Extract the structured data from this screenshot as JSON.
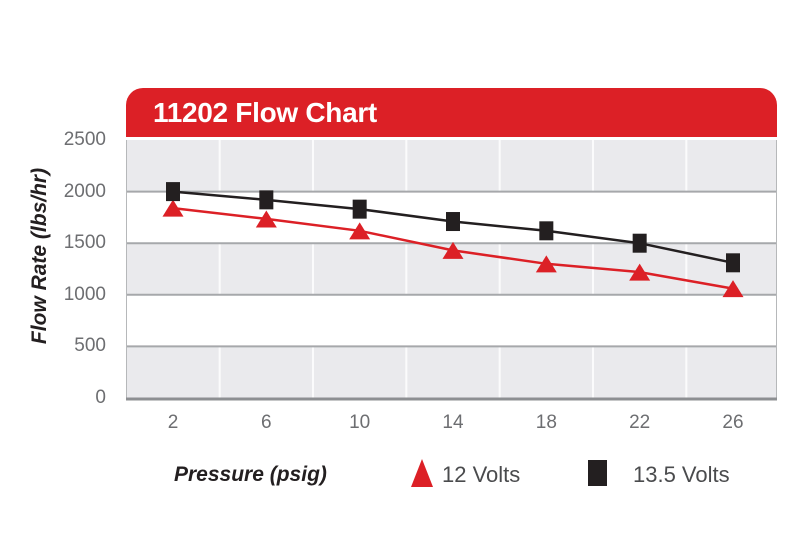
{
  "header": {
    "title": "11202 Flow Chart",
    "bg_color": "#DC2026",
    "text_color": "#FFFFFF"
  },
  "chart_data": {
    "type": "line",
    "title": "11202 Flow Chart",
    "xlabel": "Pressure (psig)",
    "ylabel": "Flow Rate (lbs/hr)",
    "x": [
      2,
      6,
      10,
      14,
      18,
      22,
      26
    ],
    "xticks": [
      "2",
      "6",
      "10",
      "14",
      "18",
      "22",
      "26"
    ],
    "yticks": [
      "0",
      "500",
      "1000",
      "1500",
      "2000",
      "2500"
    ],
    "xlim": [
      0,
      28
    ],
    "ylim": [
      0,
      2500
    ],
    "y_gridline_interval": 500,
    "legend_position": "bottom",
    "series": [
      {
        "name": "12 Volts",
        "marker": "triangle",
        "color": "#DC2026",
        "values": [
          1840,
          1735,
          1620,
          1430,
          1300,
          1220,
          1060
        ]
      },
      {
        "name": "13.5 Volts",
        "marker": "square",
        "color": "#231F20",
        "values": [
          2000,
          1920,
          1830,
          1710,
          1620,
          1500,
          1310
        ]
      }
    ]
  },
  "colors": {
    "page_bg": "#FFFFFF",
    "band_gray": "#EAEAED",
    "band_white": "#FFFFFF",
    "h_gridline": "#A6A8AB",
    "v_gridline": "#FFFFFF",
    "plot_border": "#B6B8BA",
    "axis_bottom_line": "#8D8F92",
    "tick_label": "#6D6E71",
    "axis_title": "#231F20",
    "legend_text": "#4A4B4D"
  }
}
